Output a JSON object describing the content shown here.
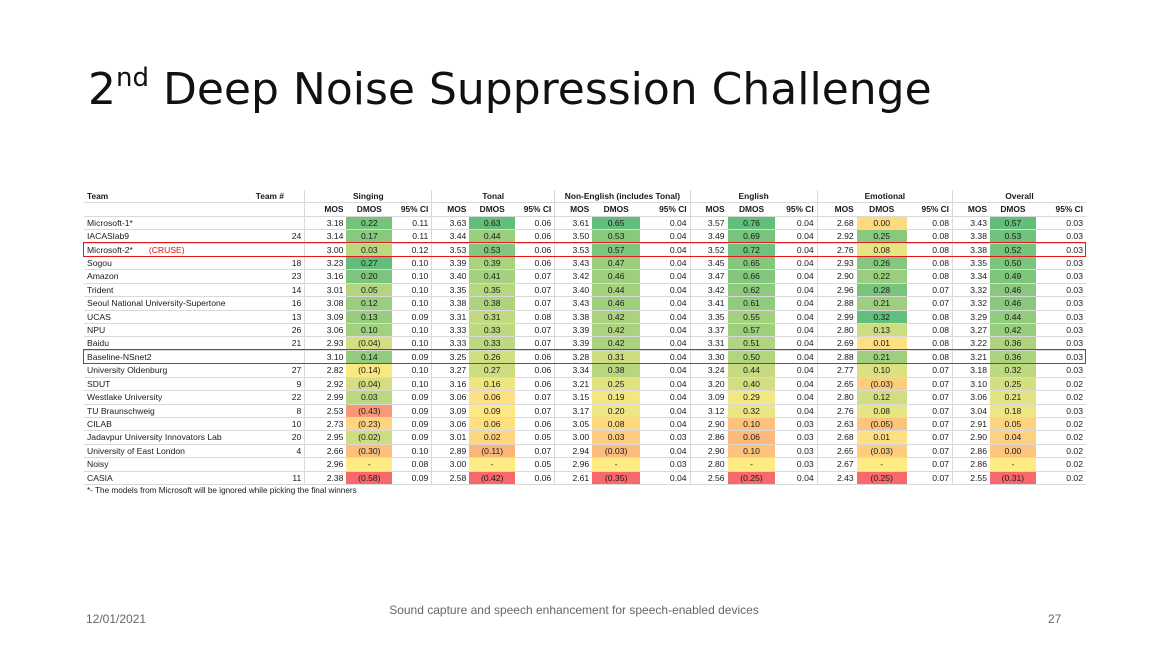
{
  "slide": {
    "title_pre": "2",
    "title_sup": "nd",
    "title_post": " Deep Noise Suppression Challenge"
  },
  "table": {
    "team_header": "Team",
    "team_num_header": "Team #",
    "groups": [
      "Singing",
      "Tonal",
      "Non-English (includes Tonal)",
      "English",
      "Emotional",
      "Overall"
    ],
    "sub_headers": [
      "MOS",
      "DMOS",
      "95% CI"
    ],
    "cruse_label": "(CRUSE)",
    "rows": [
      {
        "team": "Microsoft-1*",
        "num": "",
        "v": [
          [
            "3.18",
            "0.22",
            "0.11"
          ],
          [
            "3.63",
            "0.63",
            "0.06"
          ],
          [
            "3.61",
            "0.65",
            "0.04"
          ],
          [
            "3.57",
            "0.76",
            "0.04"
          ],
          [
            "2.68",
            "0.00",
            "0.08"
          ],
          [
            "3.43",
            "0.57",
            "0.03"
          ]
        ]
      },
      {
        "team": "IACASlab9",
        "num": "24",
        "v": [
          [
            "3.14",
            "0.17",
            "0.11"
          ],
          [
            "3.44",
            "0.44",
            "0.06"
          ],
          [
            "3.50",
            "0.53",
            "0.04"
          ],
          [
            "3.49",
            "0.69",
            "0.04"
          ],
          [
            "2.92",
            "0.25",
            "0.08"
          ],
          [
            "3.38",
            "0.53",
            "0.03"
          ]
        ]
      },
      {
        "team": "Microsoft-2*",
        "num": "",
        "cruse": true,
        "v": [
          [
            "3.00",
            "0.03",
            "0.12"
          ],
          [
            "3.53",
            "0.53",
            "0.06"
          ],
          [
            "3.53",
            "0.57",
            "0.04"
          ],
          [
            "3.52",
            "0.72",
            "0.04"
          ],
          [
            "2.76",
            "0.08",
            "0.08"
          ],
          [
            "3.38",
            "0.52",
            "0.03"
          ]
        ]
      },
      {
        "team": "Sogou",
        "num": "18",
        "v": [
          [
            "3.23",
            "0.27",
            "0.10"
          ],
          [
            "3.39",
            "0.39",
            "0.06"
          ],
          [
            "3.43",
            "0.47",
            "0.04"
          ],
          [
            "3.45",
            "0.65",
            "0.04"
          ],
          [
            "2.93",
            "0.26",
            "0.08"
          ],
          [
            "3.35",
            "0.50",
            "0.03"
          ]
        ]
      },
      {
        "team": "Amazon",
        "num": "23",
        "v": [
          [
            "3.16",
            "0.20",
            "0.10"
          ],
          [
            "3.40",
            "0.41",
            "0.07"
          ],
          [
            "3.42",
            "0.46",
            "0.04"
          ],
          [
            "3.47",
            "0.66",
            "0.04"
          ],
          [
            "2.90",
            "0.22",
            "0.08"
          ],
          [
            "3.34",
            "0.49",
            "0.03"
          ]
        ]
      },
      {
        "team": "Trident",
        "num": "14",
        "v": [
          [
            "3.01",
            "0.05",
            "0.10"
          ],
          [
            "3.35",
            "0.35",
            "0.07"
          ],
          [
            "3.40",
            "0.44",
            "0.04"
          ],
          [
            "3.42",
            "0.62",
            "0.04"
          ],
          [
            "2.96",
            "0.28",
            "0.07"
          ],
          [
            "3.32",
            "0.46",
            "0.03"
          ]
        ]
      },
      {
        "team": "Seoul National University-Supertone",
        "num": "16",
        "v": [
          [
            "3.08",
            "0.12",
            "0.10"
          ],
          [
            "3.38",
            "0.38",
            "0.07"
          ],
          [
            "3.43",
            "0.46",
            "0.04"
          ],
          [
            "3.41",
            "0.61",
            "0.04"
          ],
          [
            "2.88",
            "0.21",
            "0.07"
          ],
          [
            "3.32",
            "0.46",
            "0.03"
          ]
        ]
      },
      {
        "team": "UCAS",
        "num": "13",
        "v": [
          [
            "3.09",
            "0.13",
            "0.09"
          ],
          [
            "3.31",
            "0.31",
            "0.08"
          ],
          [
            "3.38",
            "0.42",
            "0.04"
          ],
          [
            "3.35",
            "0.55",
            "0.04"
          ],
          [
            "2.99",
            "0.32",
            "0.08"
          ],
          [
            "3.29",
            "0.44",
            "0.03"
          ]
        ]
      },
      {
        "team": "NPU",
        "num": "26",
        "v": [
          [
            "3.06",
            "0.10",
            "0.10"
          ],
          [
            "3.33",
            "0.33",
            "0.07"
          ],
          [
            "3.39",
            "0.42",
            "0.04"
          ],
          [
            "3.37",
            "0.57",
            "0.04"
          ],
          [
            "2.80",
            "0.13",
            "0.08"
          ],
          [
            "3.27",
            "0.42",
            "0.03"
          ]
        ]
      },
      {
        "team": "Baidu",
        "num": "21",
        "v": [
          [
            "2.93",
            "(0.04)",
            "0.10"
          ],
          [
            "3.33",
            "0.33",
            "0.07"
          ],
          [
            "3.39",
            "0.42",
            "0.04"
          ],
          [
            "3.31",
            "0.51",
            "0.04"
          ],
          [
            "2.69",
            "0.01",
            "0.08"
          ],
          [
            "3.22",
            "0.36",
            "0.03"
          ]
        ]
      },
      {
        "team": "Baseline-NSnet2",
        "num": "",
        "v": [
          [
            "3.10",
            "0.14",
            "0.09"
          ],
          [
            "3.25",
            "0.26",
            "0.06"
          ],
          [
            "3.28",
            "0.31",
            "0.04"
          ],
          [
            "3.30",
            "0.50",
            "0.04"
          ],
          [
            "2.88",
            "0.21",
            "0.08"
          ],
          [
            "3.21",
            "0.36",
            "0.03"
          ]
        ]
      },
      {
        "team": "University Oldenburg",
        "num": "27",
        "v": [
          [
            "2.82",
            "(0.14)",
            "0.10"
          ],
          [
            "3.27",
            "0.27",
            "0.06"
          ],
          [
            "3.34",
            "0.38",
            "0.04"
          ],
          [
            "3.24",
            "0.44",
            "0.04"
          ],
          [
            "2.77",
            "0.10",
            "0.07"
          ],
          [
            "3.18",
            "0.32",
            "0.03"
          ]
        ]
      },
      {
        "team": "SDUT",
        "num": "9",
        "v": [
          [
            "2.92",
            "(0.04)",
            "0.10"
          ],
          [
            "3.16",
            "0.16",
            "0.06"
          ],
          [
            "3.21",
            "0.25",
            "0.04"
          ],
          [
            "3.20",
            "0.40",
            "0.04"
          ],
          [
            "2.65",
            "(0.03)",
            "0.07"
          ],
          [
            "3.10",
            "0.25",
            "0.02"
          ]
        ]
      },
      {
        "team": "Westlake University",
        "num": "22",
        "v": [
          [
            "2.99",
            "0.03",
            "0.09"
          ],
          [
            "3.06",
            "0.06",
            "0.07"
          ],
          [
            "3.15",
            "0.19",
            "0.04"
          ],
          [
            "3.09",
            "0.29",
            "0.04"
          ],
          [
            "2.80",
            "0.12",
            "0.07"
          ],
          [
            "3.06",
            "0.21",
            "0.02"
          ]
        ]
      },
      {
        "team": "TU Braunschweig",
        "num": "8",
        "v": [
          [
            "2.53",
            "(0.43)",
            "0.09"
          ],
          [
            "3.09",
            "0.09",
            "0.07"
          ],
          [
            "3.17",
            "0.20",
            "0.04"
          ],
          [
            "3.12",
            "0.32",
            "0.04"
          ],
          [
            "2.76",
            "0.08",
            "0.07"
          ],
          [
            "3.04",
            "0.18",
            "0.03"
          ]
        ]
      },
      {
        "team": "CILAB",
        "num": "10",
        "v": [
          [
            "2.73",
            "(0.23)",
            "0.09"
          ],
          [
            "3.06",
            "0.06",
            "0.06"
          ],
          [
            "3.05",
            "0.08",
            "0.04"
          ],
          [
            "2.90",
            "0.10",
            "0.03"
          ],
          [
            "2.63",
            "(0.05)",
            "0.07"
          ],
          [
            "2.91",
            "0.05",
            "0.02"
          ]
        ]
      },
      {
        "team": "Jadavpur University Innovators Lab",
        "num": "20",
        "v": [
          [
            "2.95",
            "(0.02)",
            "0.09"
          ],
          [
            "3.01",
            "0.02",
            "0.05"
          ],
          [
            "3.00",
            "0.03",
            "0.03"
          ],
          [
            "2.86",
            "0.06",
            "0.03"
          ],
          [
            "2.68",
            "0.01",
            "0.07"
          ],
          [
            "2.90",
            "0.04",
            "0.02"
          ]
        ]
      },
      {
        "team": "University of East London",
        "num": "4",
        "v": [
          [
            "2.66",
            "(0.30)",
            "0.10"
          ],
          [
            "2.89",
            "(0.11)",
            "0.07"
          ],
          [
            "2.94",
            "(0.03)",
            "0.04"
          ],
          [
            "2.90",
            "0.10",
            "0.03"
          ],
          [
            "2.65",
            "(0.03)",
            "0.07"
          ],
          [
            "2.86",
            "0.00",
            "0.02"
          ]
        ]
      },
      {
        "team": "Noisy",
        "num": "",
        "v": [
          [
            "2.96",
            "-",
            "0.08"
          ],
          [
            "3.00",
            "-",
            "0.05"
          ],
          [
            "2.96",
            "-",
            "0.03"
          ],
          [
            "2.80",
            "-",
            "0.03"
          ],
          [
            "2.67",
            "-",
            "0.07"
          ],
          [
            "2.86",
            "-",
            "0.02"
          ]
        ]
      },
      {
        "team": "CASIA",
        "num": "11",
        "v": [
          [
            "2.38",
            "(0.58)",
            "0.09"
          ],
          [
            "2.58",
            "(0.42)",
            "0.06"
          ],
          [
            "2.61",
            "(0.35)",
            "0.04"
          ],
          [
            "2.56",
            "(0.25)",
            "0.04"
          ],
          [
            "2.43",
            "(0.25)",
            "0.07"
          ],
          [
            "2.55",
            "(0.31)",
            "0.02"
          ]
        ]
      }
    ],
    "footnote": "*- The models from Microsoft will be ignored while picking the final winners"
  },
  "colors": {
    "highlight_border": "#e01b1b",
    "best": "#63be7b",
    "mid": "#ffeb84",
    "worst": "#f8696b"
  },
  "footer": {
    "date": "12/01/2021",
    "center": "Sound capture and speech enhancement for speech-enabled devices",
    "page": "27"
  }
}
